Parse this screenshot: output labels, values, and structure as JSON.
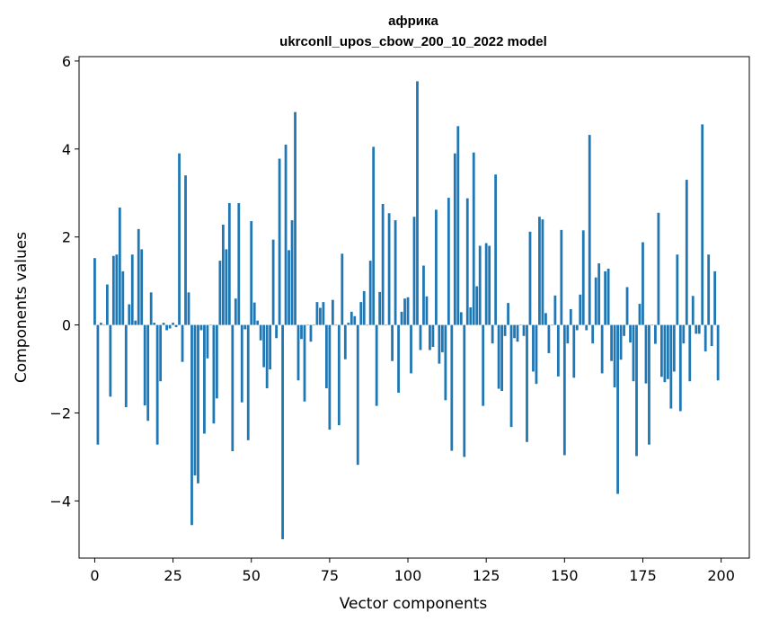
{
  "chart_data": {
    "type": "bar",
    "title": "африка",
    "subtitle": "ukrconll_upos_cbow_200_10_2022 model",
    "xlabel": "Vector components",
    "ylabel": "Components values",
    "xlim": [
      -5,
      209
    ],
    "ylim": [
      -5.3,
      6.1
    ],
    "xticks": [
      0,
      25,
      50,
      75,
      100,
      125,
      150,
      175,
      200
    ],
    "yticks": [
      -4,
      -2,
      0,
      2,
      4,
      6
    ],
    "grid": false,
    "color": "#1f77b4",
    "values": [
      1.52,
      -2.72,
      0.05,
      0.0,
      0.92,
      -1.63,
      1.57,
      1.6,
      2.67,
      1.22,
      -1.87,
      0.47,
      1.6,
      0.1,
      2.18,
      1.72,
      -1.83,
      -2.18,
      0.74,
      0.05,
      -2.72,
      -1.28,
      0.05,
      -0.12,
      -0.08,
      0.05,
      -0.05,
      3.9,
      -0.84,
      3.4,
      0.74,
      -4.55,
      -3.42,
      -3.6,
      -0.12,
      -2.47,
      -0.76,
      0.0,
      -2.24,
      -1.67,
      1.46,
      2.28,
      1.72,
      2.77,
      -2.87,
      0.6,
      2.77,
      -1.76,
      -0.1,
      -2.62,
      2.36,
      0.51,
      0.1,
      -0.35,
      -0.96,
      -1.44,
      -1.01,
      1.94,
      -0.3,
      3.78,
      -4.87,
      4.1,
      1.7,
      2.38,
      4.84,
      -1.26,
      -0.32,
      -1.74,
      0.0,
      -0.38,
      0.0,
      0.52,
      0.39,
      0.52,
      -1.44,
      -2.38,
      0.57,
      0.0,
      -2.28,
      1.62,
      -0.78,
      0.05,
      0.3,
      0.2,
      -3.18,
      0.52,
      0.77,
      0.0,
      1.46,
      4.05,
      -1.84,
      0.75,
      2.75,
      0.0,
      2.54,
      -0.82,
      2.38,
      -1.54,
      0.3,
      0.6,
      0.63,
      -1.1,
      2.46,
      5.54,
      -0.57,
      1.35,
      0.65,
      -0.57,
      -0.5,
      2.62,
      -0.88,
      -0.62,
      -1.71,
      2.89,
      -2.86,
      3.9,
      4.52,
      0.29,
      -3.0,
      2.88,
      0.4,
      3.92,
      0.88,
      1.8,
      -1.84,
      1.86,
      1.8,
      -0.42,
      3.42,
      -1.45,
      -1.5,
      -0.25,
      0.5,
      -2.32,
      -0.3,
      -0.38,
      0.0,
      -0.25,
      -2.66,
      2.12,
      -1.06,
      -1.34,
      2.46,
      2.4,
      0.27,
      -0.64,
      0.0,
      0.67,
      -1.17,
      2.16,
      -2.96,
      -0.42,
      0.36,
      -1.2,
      -0.12,
      0.69,
      2.15,
      -0.12,
      4.32,
      -0.42,
      1.08,
      1.4,
      -1.1,
      1.22,
      1.28,
      -0.82,
      -1.42,
      -3.84,
      -0.79,
      -0.25,
      0.86,
      -0.4,
      -1.28,
      -2.98,
      0.48,
      1.88,
      -1.33,
      -2.72,
      0.0,
      -0.43,
      2.55,
      -1.18,
      -1.3,
      -1.23,
      -1.9,
      -1.06,
      1.6,
      -1.96,
      -0.42,
      3.3,
      -1.28,
      0.66,
      -0.2,
      -0.2,
      4.56,
      -0.6,
      1.6,
      -0.48,
      1.22,
      -1.26
    ]
  }
}
